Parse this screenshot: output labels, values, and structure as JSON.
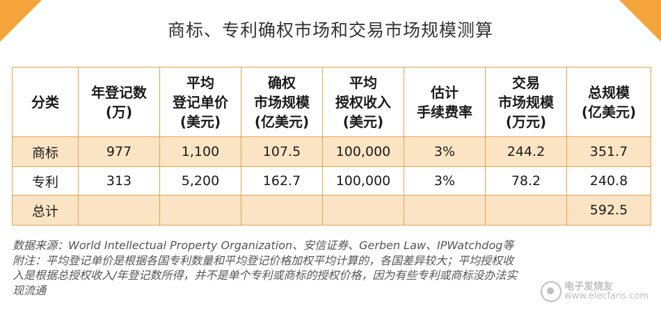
{
  "title": "商标、专利确权市场和交易市场规模测算",
  "table": {
    "headers": [
      [
        "分类"
      ],
      [
        "年登记数",
        "(万)"
      ],
      [
        "平均",
        "登记单价",
        "(美元)"
      ],
      [
        "确权",
        "市场规模",
        "(亿美元)"
      ],
      [
        "平均",
        "授权收入",
        "(美元)"
      ],
      [
        "估计",
        "手续费率"
      ],
      [
        "交易",
        "市场规模",
        "(万元)"
      ],
      [
        "总规模",
        "(亿美元)"
      ]
    ],
    "rows": [
      [
        "商标",
        "977",
        "1,100",
        "107.5",
        "100,000",
        "3%",
        "244.2",
        "351.7"
      ],
      [
        "专利",
        "313",
        "5,200",
        "162.7",
        "100,000",
        "3%",
        "78.2",
        "240.8"
      ],
      [
        "总计",
        "",
        "",
        "",
        "",
        "",
        "",
        "592.5"
      ]
    ]
  },
  "notes": {
    "source": "数据来源：World Intellectual Property Organization、安信证券、Gerben Law、IPWatchdog等",
    "footnote_1": "附注：平均登记单价是根据各国专利数量和平均登记价格加权平均计算的，各国差异较大；平均授权收",
    "footnote_2": "入是根据总授权收入/年登记数所得，并不是单个专利或商标的授权价格，因为有些专利或商标没办法实",
    "footnote_3": "现流通"
  },
  "watermark": {
    "line1": "电子发烧友",
    "line2": "www.elecfans.com"
  },
  "colors": {
    "accent": "#f4a43a",
    "row_highlight": "#fbe4c4",
    "border": "#e0a34b"
  }
}
